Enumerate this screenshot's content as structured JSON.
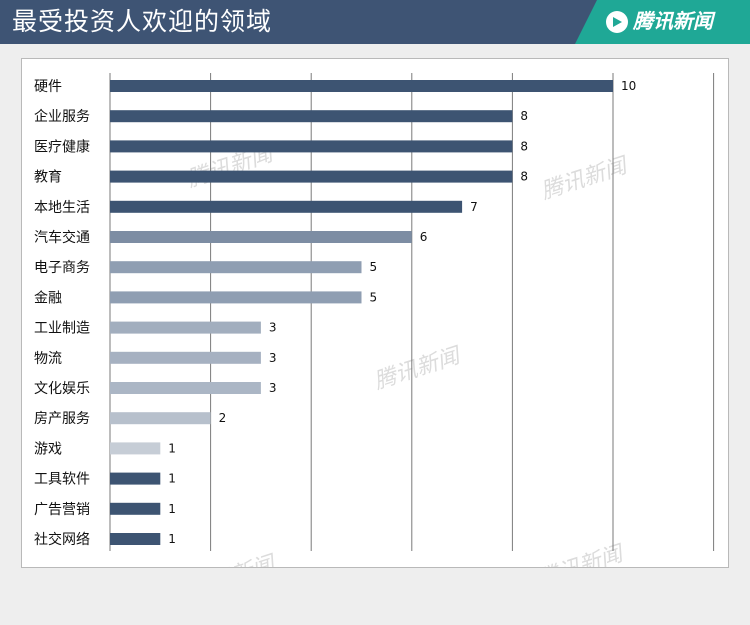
{
  "header": {
    "title": "最受投资人欢迎的领域",
    "brand": "腾讯新闻",
    "background": "#3e5474",
    "brand_color": "#1fa896"
  },
  "watermark": {
    "text": "腾讯新闻",
    "color": "#dcdcdc"
  },
  "chart_data": {
    "type": "bar",
    "orientation": "horizontal",
    "title": "最受投资人欢迎的领域",
    "categories": [
      "硬件",
      "企业服务",
      "医疗健康",
      "教育",
      "本地生活",
      "汽车交通",
      "电子商务",
      "金融",
      "工业制造",
      "物流",
      "文化娱乐",
      "房产服务",
      "游戏",
      "工具软件",
      "广告营销",
      "社交网络"
    ],
    "values": [
      10,
      8,
      8,
      8,
      7,
      6,
      5,
      5,
      3,
      3,
      3,
      2,
      1,
      1,
      1,
      1
    ],
    "bar_colors": [
      "#3d5472",
      "#3d5472",
      "#3d5472",
      "#3d5472",
      "#3d5472",
      "#7d8da3",
      "#8f9eb2",
      "#8f9eb2",
      "#a2aebe",
      "#a6b1c1",
      "#abb6c5",
      "#b7c0cc",
      "#c6cdd6",
      "#3d5472",
      "#3d5472",
      "#3d5472"
    ],
    "xlim": [
      0,
      12
    ],
    "grid": true,
    "legend": "none",
    "xlabel": "",
    "ylabel": ""
  }
}
